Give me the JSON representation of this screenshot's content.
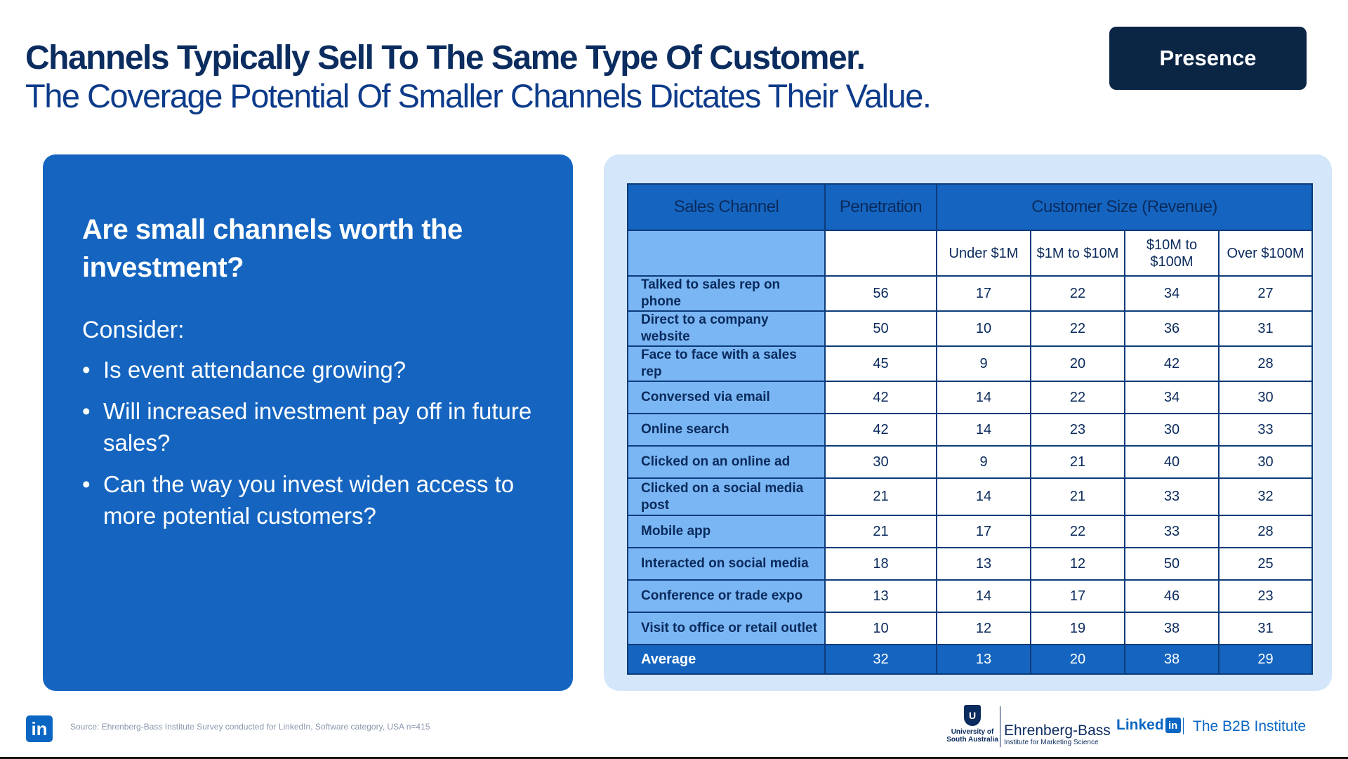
{
  "header": {
    "title_line1": "Channels Typically Sell To The Same Type Of Customer.",
    "title_line2": "The Coverage Potential Of Smaller Channels Dictates Their Value.",
    "badge": "Presence"
  },
  "left_panel": {
    "question": "Are small channels worth the investment?",
    "consider": "Consider:",
    "bullets": [
      "Is event attendance growing?",
      "Will increased investment pay off in future sales?",
      "Can the way you invest widen access to more potential customers?"
    ]
  },
  "table": {
    "headers": {
      "channel": "Sales Channel",
      "penetration": "Penetration",
      "customer_size": "Customer Size (Revenue)"
    },
    "subheaders": [
      "Under $1M",
      "$1M to $10M",
      "$10M to $100M",
      "Over $100M"
    ],
    "rows": [
      {
        "channel": "Talked to sales rep on phone",
        "penetration": "56",
        "c1": "17",
        "c2": "22",
        "c3": "34",
        "c4": "27"
      },
      {
        "channel": "Direct to a company website",
        "penetration": "50",
        "c1": "10",
        "c2": "22",
        "c3": "36",
        "c4": "31"
      },
      {
        "channel": "Face to face with a sales rep",
        "penetration": "45",
        "c1": "9",
        "c2": "20",
        "c3": "42",
        "c4": "28"
      },
      {
        "channel": "Conversed via email",
        "penetration": "42",
        "c1": "14",
        "c2": "22",
        "c3": "34",
        "c4": "30"
      },
      {
        "channel": "Online search",
        "penetration": "42",
        "c1": "14",
        "c2": "23",
        "c3": "30",
        "c4": "33"
      },
      {
        "channel": "Clicked on an online ad",
        "penetration": "30",
        "c1": "9",
        "c2": "21",
        "c3": "40",
        "c4": "30"
      },
      {
        "channel": "Clicked on a social media post",
        "penetration": "21",
        "c1": "14",
        "c2": "21",
        "c3": "33",
        "c4": "32"
      },
      {
        "channel": "Mobile app",
        "penetration": "21",
        "c1": "17",
        "c2": "22",
        "c3": "33",
        "c4": "28"
      },
      {
        "channel": "Interacted on social media",
        "penetration": "18",
        "c1": "13",
        "c2": "12",
        "c3": "50",
        "c4": "25"
      },
      {
        "channel": "Conference or trade expo",
        "penetration": "13",
        "c1": "14",
        "c2": "17",
        "c3": "46",
        "c4": "23"
      },
      {
        "channel": "Visit to office or retail outlet",
        "penetration": "10",
        "c1": "12",
        "c2": "19",
        "c3": "38",
        "c4": "31"
      }
    ],
    "average": {
      "channel": "Average",
      "penetration": "32",
      "c1": "13",
      "c2": "20",
      "c3": "38",
      "c4": "29"
    }
  },
  "footer": {
    "linkedin_icon": "in",
    "source": "Source:  Ehrenberg-Bass Institute Survey conducted for LinkedIn, Software category, USA n=415",
    "unisa_line1": "University of",
    "unisa_line2": "South Australia",
    "eb_name": "Ehrenberg-Bass",
    "eb_sub": "Institute for Marketing Science",
    "linkedin_word": "Linked",
    "linkedin_box": "in",
    "b2b": "The B2B Institute"
  },
  "colors": {
    "navy": "#0b2545",
    "blue": "#1565c0",
    "light_blue": "#7ab6f3",
    "panel_bg": "#d4e6f9"
  }
}
